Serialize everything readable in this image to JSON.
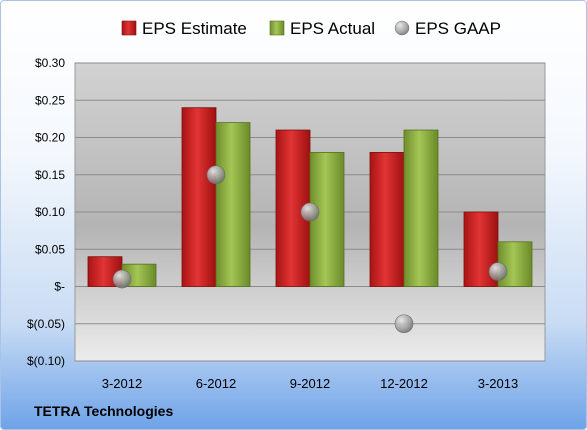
{
  "chart_data": {
    "type": "bar",
    "categories": [
      "3-2012",
      "6-2012",
      "9-2012",
      "12-2012",
      "3-2013"
    ],
    "series": [
      {
        "name": "EPS Estimate",
        "type": "bar",
        "color": "#d42a2a",
        "values": [
          0.04,
          0.24,
          0.21,
          0.18,
          0.1
        ]
      },
      {
        "name": "EPS Actual",
        "type": "bar",
        "color": "#8fb040",
        "values": [
          0.03,
          0.22,
          0.18,
          0.21,
          0.06
        ]
      },
      {
        "name": "EPS GAAP",
        "type": "scatter",
        "color": "#a8a8a8",
        "values": [
          0.01,
          0.15,
          0.1,
          -0.05,
          0.02
        ]
      }
    ],
    "ylim": [
      -0.1,
      0.3
    ],
    "yticks": [
      {
        "value": 0.3,
        "label": "$0.30"
      },
      {
        "value": 0.25,
        "label": "$0.25"
      },
      {
        "value": 0.2,
        "label": "$0.20"
      },
      {
        "value": 0.15,
        "label": "$0.15"
      },
      {
        "value": 0.1,
        "label": "$0.10"
      },
      {
        "value": 0.05,
        "label": "$0.05"
      },
      {
        "value": 0.0,
        "label": "$-"
      },
      {
        "value": -0.05,
        "label": "$(0.05)"
      },
      {
        "value": -0.1,
        "label": "$(0.10)"
      }
    ],
    "grid": true,
    "legend_position": "top"
  },
  "footer": {
    "company": "TETRA Technologies"
  }
}
